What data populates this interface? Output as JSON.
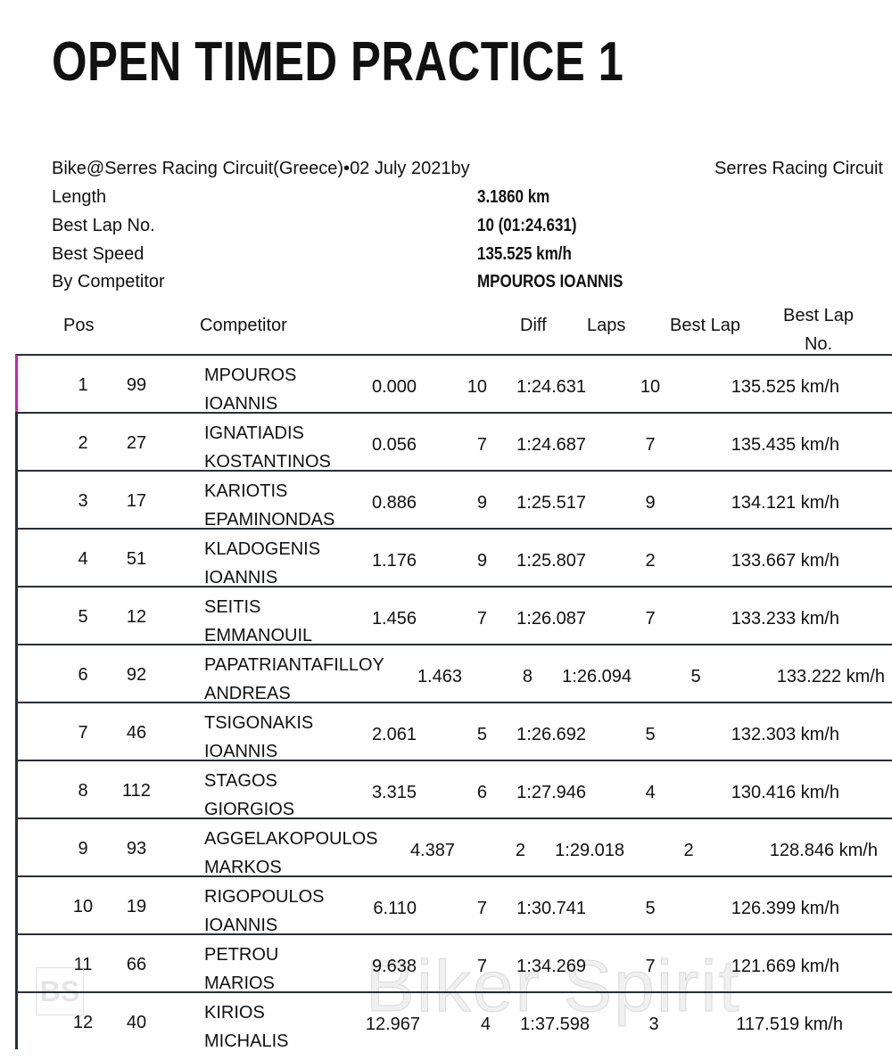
{
  "title": "OPEN TIMED PRACTICE 1",
  "event": {
    "line": "Bike@Serres Racing Circuit(Greece)•02 July 2021by",
    "organizer": "Serres Racing Circuit",
    "length_label": "Length",
    "length": "3.1860 km",
    "best_lap_label": "Best Lap No.",
    "best_lap": "10 (01:24.631)",
    "best_speed_label": "Best Speed",
    "best_speed": "135.525 km/h",
    "competitor_label": "By Competitor",
    "competitor": "MPOUROS IOANNIS"
  },
  "columns": {
    "pos": "Pos",
    "competitor": "Competitor",
    "diff": "Diff",
    "laps": "Laps",
    "best_lap": "Best Lap",
    "best_lap_no": "Best Lap No."
  },
  "rows": [
    {
      "pos": "1",
      "num": "99",
      "first": "MPOUROS",
      "last": "IOANNIS",
      "diff": "0.000",
      "laps": "10",
      "best": "1:24.631",
      "lapno": "10",
      "speed": "135.525 km/h"
    },
    {
      "pos": "2",
      "num": "27",
      "first": "IGNATIADIS",
      "last": "KOSTANTINOS",
      "diff": "0.056",
      "laps": "7",
      "best": "1:24.687",
      "lapno": "7",
      "speed": "135.435 km/h"
    },
    {
      "pos": "3",
      "num": "17",
      "first": "KARIOTIS",
      "last": "EPAMINONDAS",
      "diff": "0.886",
      "laps": "9",
      "best": "1:25.517",
      "lapno": "9",
      "speed": "134.121 km/h"
    },
    {
      "pos": "4",
      "num": "51",
      "first": "KLADOGENIS",
      "last": "IOANNIS",
      "diff": "1.176",
      "laps": "9",
      "best": "1:25.807",
      "lapno": "2",
      "speed": "133.667 km/h"
    },
    {
      "pos": "5",
      "num": "12",
      "first": "SEITIS",
      "last": "EMMANOUIL",
      "diff": "1.456",
      "laps": "7",
      "best": "1:26.087",
      "lapno": "7",
      "speed": "133.233 km/h"
    },
    {
      "pos": "6",
      "num": "92",
      "first": "PAPATRIANTAFILLOY",
      "last": "ANDREAS",
      "diff": "1.463",
      "laps": "8",
      "best": "1:26.094",
      "lapno": "5",
      "speed": "133.222 km/h"
    },
    {
      "pos": "7",
      "num": "46",
      "first": "TSIGONAKIS",
      "last": "IOANNIS",
      "diff": "2.061",
      "laps": "5",
      "best": "1:26.692",
      "lapno": "5",
      "speed": "132.303 km/h"
    },
    {
      "pos": "8",
      "num": "112",
      "first": "STAGOS",
      "last": "GIORGIOS",
      "diff": "3.315",
      "laps": "6",
      "best": "1:27.946",
      "lapno": "4",
      "speed": "130.416 km/h"
    },
    {
      "pos": "9",
      "num": "93",
      "first": "AGGELAKOPOULOS",
      "last": "MARKOS",
      "diff": "4.387",
      "laps": "2",
      "best": "1:29.018",
      "lapno": "2",
      "speed": "128.846 km/h"
    },
    {
      "pos": "10",
      "num": "19",
      "first": "RIGOPOULOS",
      "last": "IOANNIS",
      "diff": "6.110",
      "laps": "7",
      "best": "1:30.741",
      "lapno": "5",
      "speed": "126.399 km/h"
    },
    {
      "pos": "11",
      "num": "66",
      "first": "PETROU",
      "last": "MARIOS",
      "diff": "9.638",
      "laps": "7",
      "best": "1:34.269",
      "lapno": "7",
      "speed": "121.669 km/h"
    },
    {
      "pos": "12",
      "num": "40",
      "first": "KIRIOS",
      "last": "MICHALIS",
      "diff": "12.967",
      "laps": "4",
      "best": "1:37.598",
      "lapno": "3",
      "speed": "117.519 km/h"
    }
  ],
  "watermark": {
    "text": "Biker Spirit",
    "logo": "BS"
  },
  "colors": {
    "accent": "#d020c0",
    "border": "#2a2e35"
  }
}
